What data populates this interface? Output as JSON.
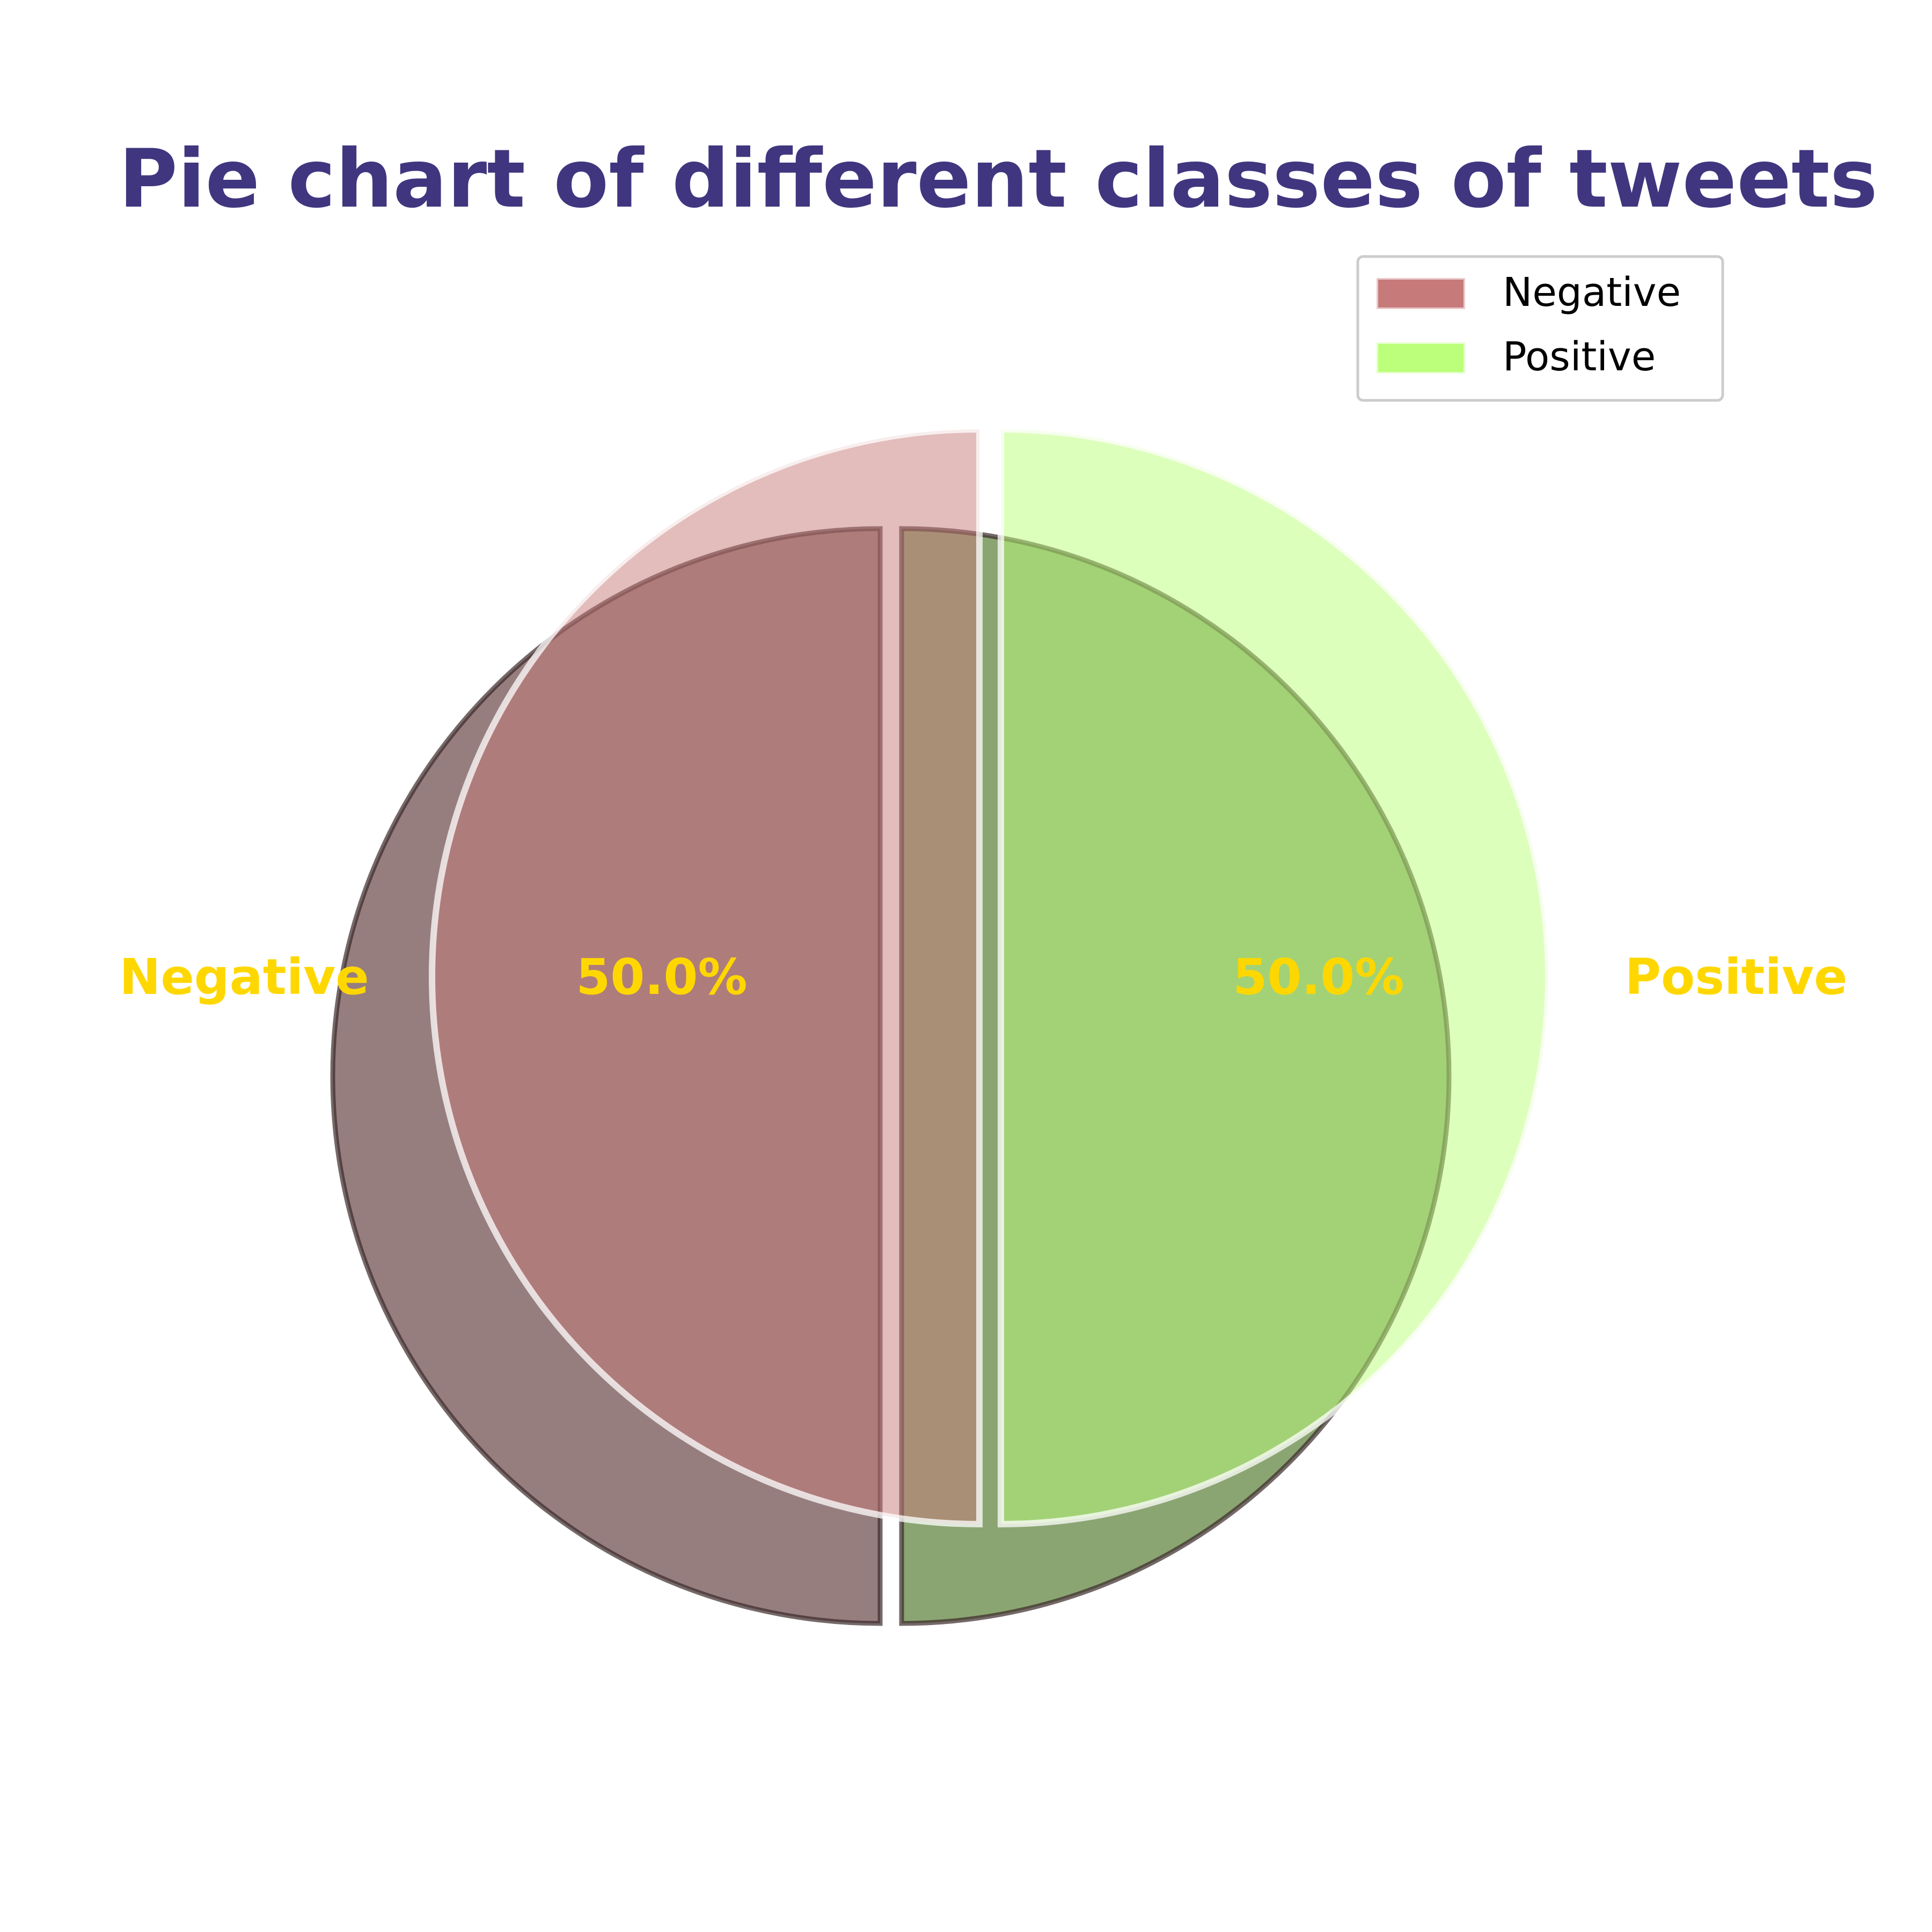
{
  "chart_data": {
    "type": "pie",
    "title": "Pie chart of different classes of tweets",
    "categories": [
      "Negative",
      "Positive"
    ],
    "values": [
      50.0,
      50.0
    ],
    "percent_labels": [
      "50.0%",
      "50.0%"
    ],
    "colors": [
      "#c77a7a",
      "#bbff7a"
    ],
    "shadow_colors": [
      "#7a5a5a",
      "#6a8c4a"
    ],
    "title_color": "#40367f",
    "label_color": "#ffd700",
    "legend": {
      "placement": "top-right",
      "entries": [
        "Negative",
        "Positive"
      ]
    },
    "exploded": true,
    "shadow": true
  }
}
